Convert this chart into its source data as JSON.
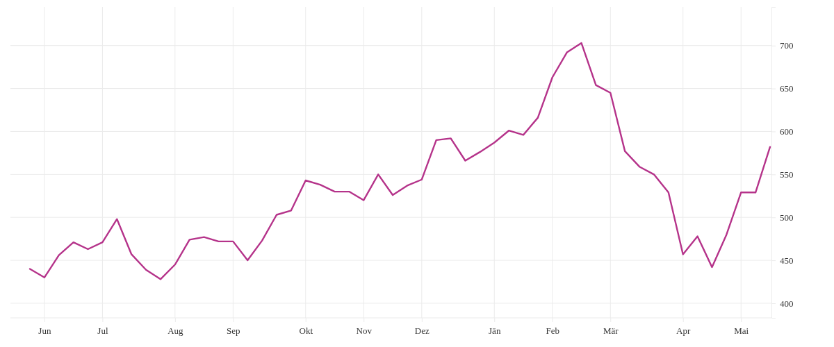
{
  "chart_data": {
    "type": "line",
    "categories": [
      null,
      "Jun",
      null,
      null,
      null,
      "Jul",
      null,
      null,
      null,
      null,
      "Aug",
      null,
      null,
      null,
      "Sep",
      null,
      null,
      null,
      null,
      "Okt",
      null,
      null,
      null,
      "Nov",
      null,
      null,
      null,
      "Dez",
      null,
      null,
      null,
      null,
      "Jän",
      null,
      null,
      null,
      "Feb",
      null,
      null,
      null,
      "Mär",
      null,
      null,
      null,
      null,
      "Apr",
      null,
      null,
      null,
      "Mai",
      null,
      null
    ],
    "series": [
      {
        "color": "#b5338a",
        "values": [
          440,
          430,
          456,
          471,
          463,
          471,
          498,
          457,
          439,
          428,
          445,
          474,
          477,
          472,
          472,
          450,
          473,
          503,
          508,
          543,
          538,
          530,
          530,
          520,
          550,
          526,
          537,
          544,
          590,
          592,
          566,
          576,
          587,
          601,
          596,
          616,
          663,
          692,
          703,
          654,
          645,
          577,
          559,
          550,
          529,
          457,
          478,
          442,
          480,
          529,
          529,
          582
        ]
      }
    ],
    "ylim": [
      383,
      745
    ],
    "yticks": [
      400,
      450,
      500,
      550,
      600,
      650,
      700
    ],
    "grid": true,
    "marker": "none",
    "line_style": "solid"
  }
}
